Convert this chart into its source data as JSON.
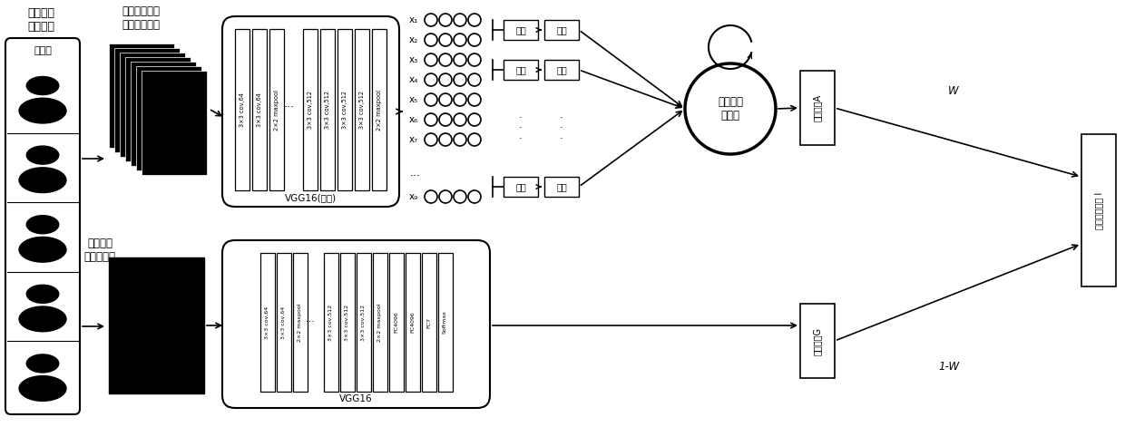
{
  "bg_color": "#ffffff",
  "label_title": "电影中的\n人脸表情",
  "label_video_frame": "视频帧",
  "label_preprocess": "预处理后的抽\n取的表情图片",
  "label_local_motion": "局部强化\n运动历史图",
  "label_vgg16_partial": "VGG16(部分)",
  "label_vgg16_full": "VGG16",
  "label_lstm": "长短期记\n忆网络",
  "label_classify_a": "分类结果A",
  "label_classify_g": "分类结果G",
  "label_final": "最终识别结果 I",
  "label_fenp": "分片",
  "label_chihua": "池化",
  "label_w": "W",
  "label_1w": "1-W",
  "vgg16_top_layers": [
    "3×3 cov,64",
    "3×3 cov,64",
    "2×2 maxpool",
    "3×3 cov,512",
    "3×3 cov,512",
    "3×3 cov,512",
    "3×3 cov,512",
    "2×2 maxpool"
  ],
  "vgg16_bottom_layers": [
    "3×3 cov,64",
    "3×3 cov,64",
    "2×2 maxpool",
    "3×3 cov,512",
    "3×3 cov,512",
    "3×3 cov,512",
    "2×2 maxpool",
    "FC4096",
    "FC4096",
    "FC7",
    "Softmax"
  ],
  "feat_row_labels": [
    "x₁",
    "x₂",
    "x₃",
    "x₄",
    "x₅",
    "x₆",
    "x₇",
    "x₉"
  ],
  "feat_dots_row": 7
}
